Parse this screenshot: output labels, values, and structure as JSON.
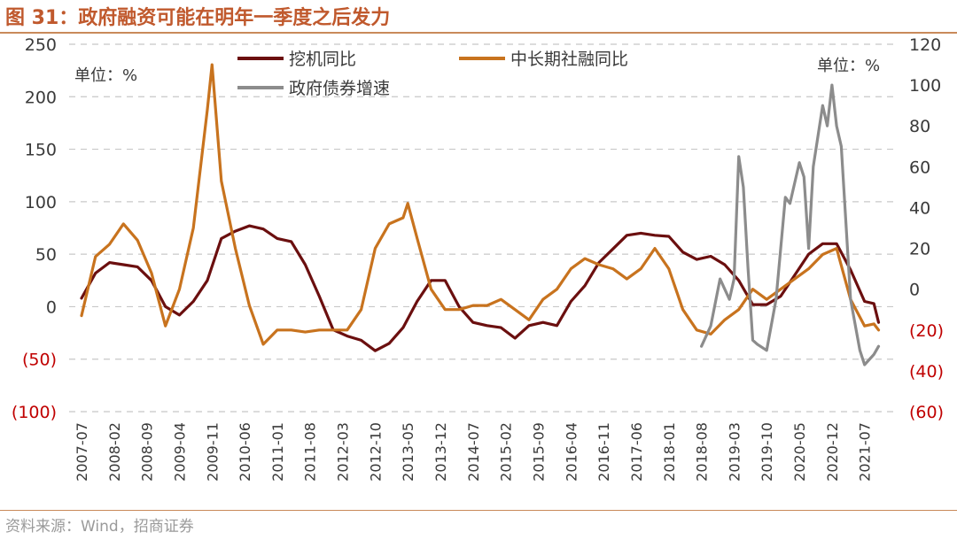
{
  "title": "图 31：政府融资可能在明年一季度之后发力",
  "source": "资料来源：Wind，招商证券",
  "chart_data": {
    "type": "line",
    "left_unit": "单位：%",
    "right_unit": "单位：%",
    "left_axis": {
      "min": -100,
      "max": 250,
      "ticks": [
        250,
        200,
        150,
        100,
        50,
        0,
        -50,
        -100
      ],
      "tick_labels": [
        "250",
        "200",
        "150",
        "100",
        "50",
        "0",
        "(50)",
        "(100)"
      ]
    },
    "right_axis": {
      "min": -60,
      "max": 120,
      "ticks": [
        120,
        100,
        80,
        60,
        40,
        20,
        0,
        -20,
        -40,
        -60
      ],
      "tick_labels": [
        "120",
        "100",
        "80",
        "60",
        "40",
        "20",
        "0",
        "(20)",
        "(40)",
        "(60)"
      ]
    },
    "x_tick_labels": [
      "2007-07",
      "2008-02",
      "2008-09",
      "2009-04",
      "2009-11",
      "2010-06",
      "2011-01",
      "2011-08",
      "2012-03",
      "2012-10",
      "2013-05",
      "2013-12",
      "2014-07",
      "2015-02",
      "2015-09",
      "2016-04",
      "2016-11",
      "2017-06",
      "2018-01",
      "2018-08",
      "2019-03",
      "2019-10",
      "2020-05",
      "2020-12",
      "2021-07"
    ],
    "grid": "horizontal-dashed",
    "legend": [
      {
        "name": "挖机同比",
        "color": "#6b0f0f"
      },
      {
        "name": "中长期社融同比",
        "color": "#c8731e"
      },
      {
        "name": "政府债券增速",
        "color": "#8c8c8c"
      }
    ],
    "series": [
      {
        "name": "挖机同比",
        "axis": "left",
        "color": "#6b0f0f",
        "points": [
          [
            "2007-07",
            8
          ],
          [
            "2007-10",
            32
          ],
          [
            "2008-01",
            42
          ],
          [
            "2008-04",
            40
          ],
          [
            "2008-07",
            38
          ],
          [
            "2008-10",
            25
          ],
          [
            "2009-01",
            0
          ],
          [
            "2009-04",
            -8
          ],
          [
            "2009-07",
            5
          ],
          [
            "2009-10",
            25
          ],
          [
            "2010-01",
            65
          ],
          [
            "2010-04",
            72
          ],
          [
            "2010-07",
            77
          ],
          [
            "2010-10",
            74
          ],
          [
            "2011-01",
            65
          ],
          [
            "2011-04",
            62
          ],
          [
            "2011-07",
            40
          ],
          [
            "2011-10",
            10
          ],
          [
            "2012-01",
            -22
          ],
          [
            "2012-04",
            -28
          ],
          [
            "2012-07",
            -32
          ],
          [
            "2012-10",
            -42
          ],
          [
            "2013-01",
            -35
          ],
          [
            "2013-04",
            -20
          ],
          [
            "2013-07",
            5
          ],
          [
            "2013-10",
            25
          ],
          [
            "2014-01",
            25
          ],
          [
            "2014-04",
            0
          ],
          [
            "2014-07",
            -15
          ],
          [
            "2014-10",
            -18
          ],
          [
            "2015-01",
            -20
          ],
          [
            "2015-04",
            -30
          ],
          [
            "2015-07",
            -18
          ],
          [
            "2015-10",
            -15
          ],
          [
            "2016-01",
            -18
          ],
          [
            "2016-04",
            5
          ],
          [
            "2016-07",
            20
          ],
          [
            "2016-10",
            42
          ],
          [
            "2017-01",
            55
          ],
          [
            "2017-04",
            68
          ],
          [
            "2017-07",
            70
          ],
          [
            "2017-10",
            68
          ],
          [
            "2018-01",
            67
          ],
          [
            "2018-04",
            52
          ],
          [
            "2018-07",
            45
          ],
          [
            "2018-10",
            48
          ],
          [
            "2019-01",
            40
          ],
          [
            "2019-04",
            25
          ],
          [
            "2019-07",
            2
          ],
          [
            "2019-10",
            2
          ],
          [
            "2020-01",
            10
          ],
          [
            "2020-04",
            30
          ],
          [
            "2020-07",
            50
          ],
          [
            "2020-10",
            60
          ],
          [
            "2021-01",
            60
          ],
          [
            "2021-04",
            35
          ],
          [
            "2021-07",
            5
          ],
          [
            "2021-09",
            3
          ],
          [
            "2021-10",
            -15
          ]
        ]
      },
      {
        "name": "中长期社融同比",
        "axis": "right",
        "color": "#c8731e",
        "points": [
          [
            "2007-07",
            -13
          ],
          [
            "2007-10",
            16
          ],
          [
            "2008-01",
            22
          ],
          [
            "2008-04",
            32
          ],
          [
            "2008-07",
            24
          ],
          [
            "2008-10",
            8
          ],
          [
            "2009-01",
            -18
          ],
          [
            "2009-04",
            0
          ],
          [
            "2009-07",
            30
          ],
          [
            "2009-10",
            88
          ],
          [
            "2009-11",
            110
          ],
          [
            "2010-01",
            53
          ],
          [
            "2010-04",
            20
          ],
          [
            "2010-07",
            -8
          ],
          [
            "2010-10",
            -27
          ],
          [
            "2011-01",
            -20
          ],
          [
            "2011-04",
            -20
          ],
          [
            "2011-07",
            -21
          ],
          [
            "2011-10",
            -20
          ],
          [
            "2012-01",
            -20
          ],
          [
            "2012-04",
            -20
          ],
          [
            "2012-07",
            -10
          ],
          [
            "2012-10",
            20
          ],
          [
            "2013-01",
            32
          ],
          [
            "2013-04",
            35
          ],
          [
            "2013-05",
            42
          ],
          [
            "2013-07",
            25
          ],
          [
            "2013-10",
            0
          ],
          [
            "2014-01",
            -10
          ],
          [
            "2014-04",
            -10
          ],
          [
            "2014-07",
            -8
          ],
          [
            "2014-10",
            -8
          ],
          [
            "2015-01",
            -5
          ],
          [
            "2015-04",
            -10
          ],
          [
            "2015-07",
            -15
          ],
          [
            "2015-10",
            -5
          ],
          [
            "2016-01",
            0
          ],
          [
            "2016-04",
            10
          ],
          [
            "2016-07",
            15
          ],
          [
            "2016-10",
            12
          ],
          [
            "2017-01",
            10
          ],
          [
            "2017-04",
            5
          ],
          [
            "2017-07",
            10
          ],
          [
            "2017-10",
            20
          ],
          [
            "2018-01",
            10
          ],
          [
            "2018-04",
            -10
          ],
          [
            "2018-07",
            -20
          ],
          [
            "2018-10",
            -22
          ],
          [
            "2019-01",
            -15
          ],
          [
            "2019-04",
            -10
          ],
          [
            "2019-07",
            0
          ],
          [
            "2019-10",
            -5
          ],
          [
            "2020-01",
            0
          ],
          [
            "2020-04",
            5
          ],
          [
            "2020-07",
            10
          ],
          [
            "2020-10",
            17
          ],
          [
            "2021-01",
            20
          ],
          [
            "2021-04",
            -5
          ],
          [
            "2021-07",
            -18
          ],
          [
            "2021-09",
            -17
          ],
          [
            "2021-10",
            -20
          ]
        ]
      },
      {
        "name": "政府债券增速",
        "axis": "right",
        "color": "#8c8c8c",
        "points": [
          [
            "2018-08",
            -28
          ],
          [
            "2018-10",
            -18
          ],
          [
            "2018-12",
            5
          ],
          [
            "2019-01",
            0
          ],
          [
            "2019-02",
            -5
          ],
          [
            "2019-03",
            5
          ],
          [
            "2019-04",
            65
          ],
          [
            "2019-05",
            50
          ],
          [
            "2019-06",
            10
          ],
          [
            "2019-07",
            -25
          ],
          [
            "2019-08",
            -27
          ],
          [
            "2019-10",
            -30
          ],
          [
            "2019-12",
            -5
          ],
          [
            "2020-02",
            45
          ],
          [
            "2020-03",
            42
          ],
          [
            "2020-05",
            62
          ],
          [
            "2020-06",
            55
          ],
          [
            "2020-07",
            20
          ],
          [
            "2020-08",
            60
          ],
          [
            "2020-09",
            75
          ],
          [
            "2020-10",
            90
          ],
          [
            "2020-11",
            80
          ],
          [
            "2020-12",
            100
          ],
          [
            "2021-01",
            80
          ],
          [
            "2021-02",
            70
          ],
          [
            "2021-04",
            -5
          ],
          [
            "2021-06",
            -30
          ],
          [
            "2021-07",
            -37
          ],
          [
            "2021-09",
            -32
          ],
          [
            "2021-10",
            -28
          ]
        ]
      }
    ]
  }
}
